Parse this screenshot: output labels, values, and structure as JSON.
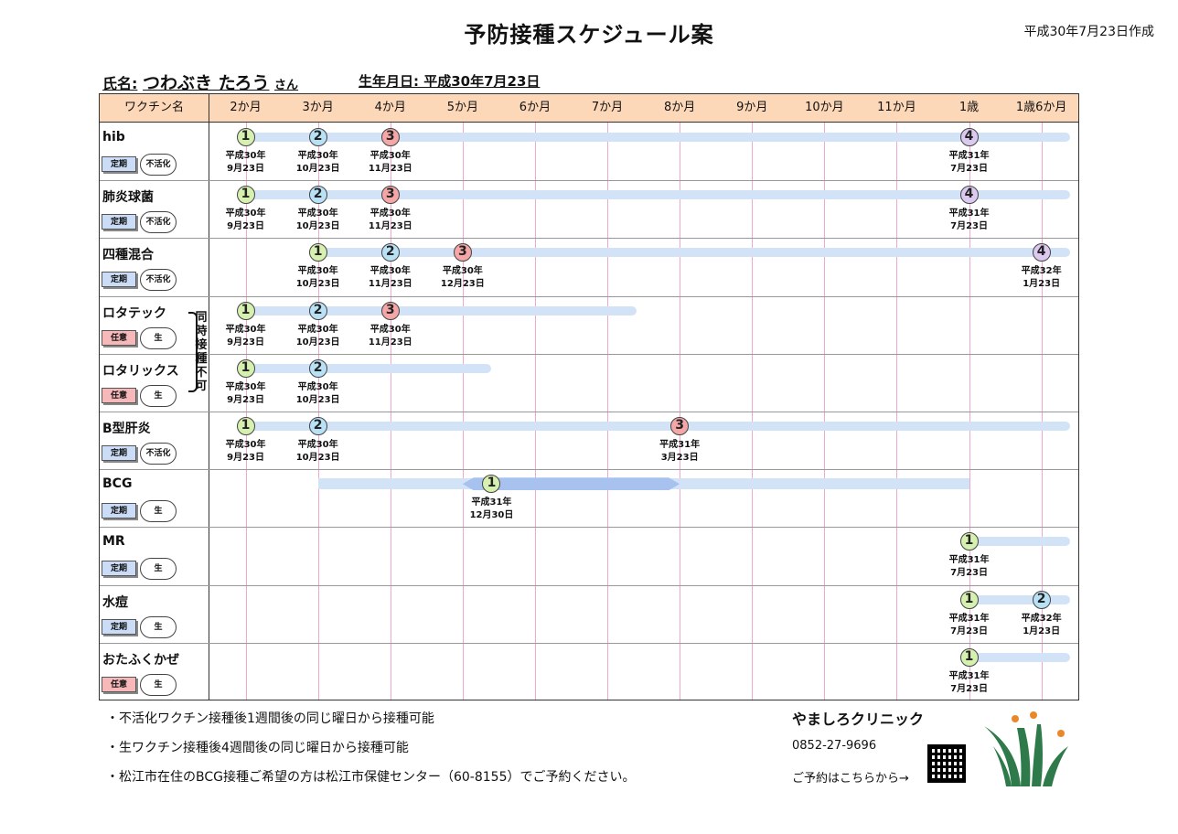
{
  "title": "予防接種スケジュール案",
  "created": "平成30年7月23日作成",
  "patient": {
    "name_label": "氏名:",
    "name": "つわぶき たろう",
    "suffix": "さん",
    "birth": "生年月日: 平成30年7月23日"
  },
  "header": {
    "first_col": "ワクチン名",
    "columns": [
      "2か月",
      "3か月",
      "4か月",
      "5か月",
      "6か月",
      "7か月",
      "8か月",
      "9か月",
      "10か月",
      "11か月",
      "1歳",
      "1歳6か月"
    ]
  },
  "tags": {
    "teiki": "定期",
    "nini": "任意",
    "inactivated": "不活化",
    "live": "生"
  },
  "simultaneous_note": "同時接種不可",
  "vaccines": [
    {
      "name": "hib",
      "type": "定期",
      "kind": "不活化",
      "doses": [
        {
          "n": "1",
          "date": "平成30年\n9月23日"
        },
        {
          "n": "2",
          "date": "平成30年\n10月23日"
        },
        {
          "n": "3",
          "date": "平成30年\n11月23日"
        },
        {
          "n": "4",
          "date": "平成31年\n7月23日"
        }
      ]
    },
    {
      "name": "肺炎球菌",
      "type": "定期",
      "kind": "不活化",
      "doses": [
        {
          "n": "1",
          "date": "平成30年\n9月23日"
        },
        {
          "n": "2",
          "date": "平成30年\n10月23日"
        },
        {
          "n": "3",
          "date": "平成30年\n11月23日"
        },
        {
          "n": "4",
          "date": "平成31年\n7月23日"
        }
      ]
    },
    {
      "name": "四種混合",
      "type": "定期",
      "kind": "不活化",
      "doses": [
        {
          "n": "1",
          "date": "平成30年\n10月23日"
        },
        {
          "n": "2",
          "date": "平成30年\n11月23日"
        },
        {
          "n": "3",
          "date": "平成30年\n12月23日"
        },
        {
          "n": "4",
          "date": "平成32年\n1月23日"
        }
      ]
    },
    {
      "name": "ロタテック",
      "type": "任意",
      "kind": "生",
      "doses": [
        {
          "n": "1",
          "date": "平成30年\n9月23日"
        },
        {
          "n": "2",
          "date": "平成30年\n10月23日"
        },
        {
          "n": "3",
          "date": "平成30年\n11月23日"
        }
      ]
    },
    {
      "name": "ロタリックス",
      "type": "任意",
      "kind": "生",
      "doses": [
        {
          "n": "1",
          "date": "平成30年\n9月23日"
        },
        {
          "n": "2",
          "date": "平成30年\n10月23日"
        }
      ]
    },
    {
      "name": "B型肝炎",
      "type": "定期",
      "kind": "不活化",
      "doses": [
        {
          "n": "1",
          "date": "平成30年\n9月23日"
        },
        {
          "n": "2",
          "date": "平成30年\n10月23日"
        },
        {
          "n": "3",
          "date": "平成31年\n3月23日"
        }
      ]
    },
    {
      "name": "BCG",
      "type": "定期",
      "kind": "生",
      "doses": [
        {
          "n": "1",
          "date": "平成31年\n12月30日"
        }
      ]
    },
    {
      "name": "MR",
      "type": "定期",
      "kind": "生",
      "doses": [
        {
          "n": "1",
          "date": "平成31年\n7月23日"
        }
      ]
    },
    {
      "name": "水痘",
      "type": "定期",
      "kind": "生",
      "doses": [
        {
          "n": "1",
          "date": "平成31年\n7月23日"
        },
        {
          "n": "2",
          "date": "平成32年\n1月23日"
        }
      ]
    },
    {
      "name": "おたふくかぜ",
      "type": "任意",
      "kind": "生",
      "doses": [
        {
          "n": "1",
          "date": "平成31年\n7月23日"
        }
      ]
    }
  ],
  "notes": [
    "・不活化ワクチン接種後1週間後の同じ曜日から接種可能",
    "・生ワクチン接種後4週間後の同じ曜日から接種可能",
    "・松江市在住のBCG接種ご希望の方は松江市保健センター（60-8155）でご予約ください。"
  ],
  "clinic": {
    "name": "やましろクリニック",
    "phone": "0852-27-9696",
    "reserve": "ご予約はこちらから→"
  },
  "colors": {
    "header_bg": "#fdd8b8",
    "bar": "#d3e3f7",
    "dose1": "#d6f0b0",
    "dose2": "#b9e1f5",
    "dose3": "#f5a6a6",
    "dose4": "#dcc9ef",
    "logo_green": "#2f7a4a",
    "logo_orange": "#e8882a"
  }
}
